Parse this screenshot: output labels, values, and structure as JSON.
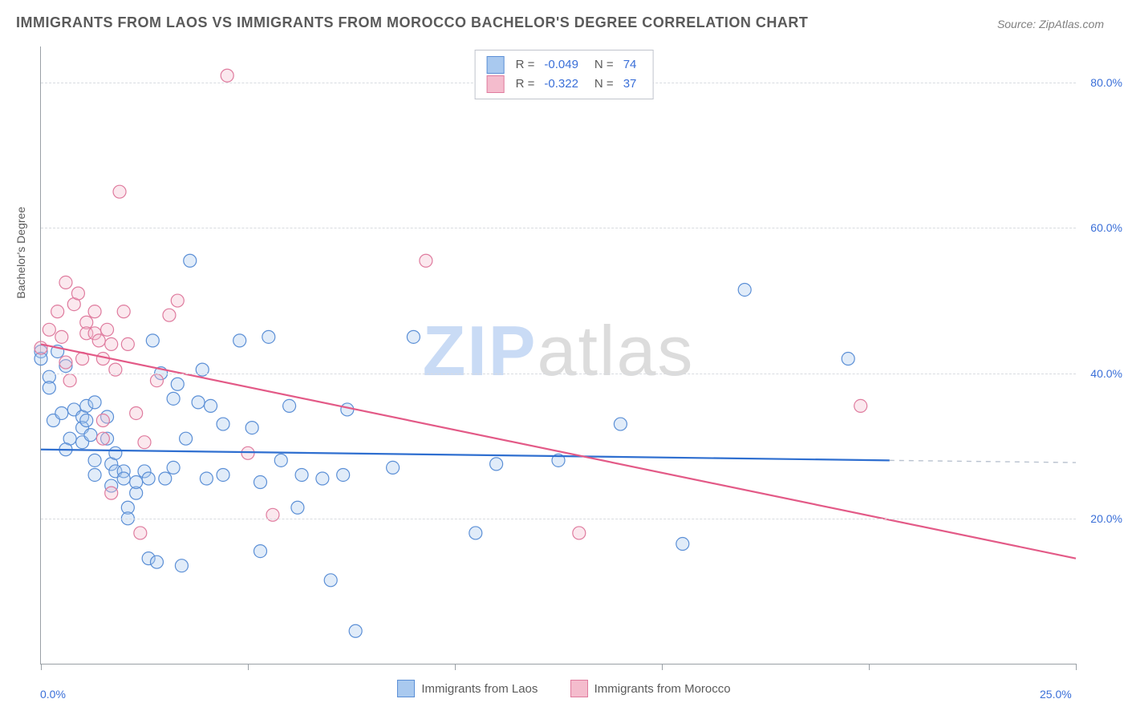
{
  "title": "IMMIGRANTS FROM LAOS VS IMMIGRANTS FROM MOROCCO BACHELOR'S DEGREE CORRELATION CHART",
  "source_label": "Source: ",
  "source_name": "ZipAtlas.com",
  "y_axis_title": "Bachelor's Degree",
  "watermark": {
    "part1": "ZIP",
    "part2": "atlas"
  },
  "chart": {
    "type": "scatter",
    "xlim": [
      0,
      25
    ],
    "ylim": [
      0,
      85
    ],
    "x_ticks_percent": [
      0,
      5,
      10,
      15,
      20,
      25
    ],
    "x_tick_labels": {
      "first": "0.0%",
      "last": "25.0%"
    },
    "y_gridlines": [
      20,
      40,
      60,
      80
    ],
    "y_tick_labels": [
      "20.0%",
      "40.0%",
      "60.0%",
      "80.0%"
    ],
    "background_color": "#ffffff",
    "grid_color": "#d8dbe0",
    "axis_color": "#9aa0a6",
    "label_color": "#3a6fd8",
    "text_color": "#5a5a5a",
    "title_fontsize": 18,
    "label_fontsize": 14,
    "marker_radius": 8,
    "marker_fill_opacity": 0.35,
    "marker_stroke_width": 1.2,
    "trend_line_width": 2.2,
    "series": [
      {
        "name": "Immigrants from Laos",
        "fill_color": "#a9c9ef",
        "stroke_color": "#5b8fd6",
        "line_color": "#2f6fd0",
        "R": "-0.049",
        "N": "74",
        "trend": {
          "x1": 0,
          "y1": 29.5,
          "x2": 20.5,
          "y2": 28.0,
          "extend_x2": 25,
          "extend_y2": 27.7,
          "extend_dash": "6,6"
        },
        "points": [
          [
            0.0,
            43.0
          ],
          [
            0.0,
            42.0
          ],
          [
            0.2,
            39.5
          ],
          [
            0.2,
            38.0
          ],
          [
            0.4,
            43.0
          ],
          [
            0.6,
            41.0
          ],
          [
            0.3,
            33.5
          ],
          [
            0.5,
            34.5
          ],
          [
            0.7,
            31.0
          ],
          [
            0.6,
            29.5
          ],
          [
            0.8,
            35.0
          ],
          [
            1.0,
            34.0
          ],
          [
            1.0,
            30.5
          ],
          [
            1.0,
            32.5
          ],
          [
            1.1,
            35.5
          ],
          [
            1.1,
            33.5
          ],
          [
            1.2,
            31.5
          ],
          [
            1.3,
            36.0
          ],
          [
            1.3,
            28.0
          ],
          [
            1.3,
            26.0
          ],
          [
            1.6,
            31.0
          ],
          [
            1.6,
            34.0
          ],
          [
            1.7,
            27.5
          ],
          [
            1.7,
            24.5
          ],
          [
            1.8,
            29.0
          ],
          [
            1.8,
            26.5
          ],
          [
            2.0,
            26.5
          ],
          [
            2.0,
            25.5
          ],
          [
            2.1,
            21.5
          ],
          [
            2.1,
            20.0
          ],
          [
            2.3,
            23.5
          ],
          [
            2.3,
            25.0
          ],
          [
            2.5,
            26.5
          ],
          [
            2.6,
            25.5
          ],
          [
            2.6,
            14.5
          ],
          [
            2.8,
            14.0
          ],
          [
            2.7,
            44.5
          ],
          [
            2.9,
            40.0
          ],
          [
            3.0,
            25.5
          ],
          [
            3.2,
            27.0
          ],
          [
            3.2,
            36.5
          ],
          [
            3.3,
            38.5
          ],
          [
            3.4,
            13.5
          ],
          [
            3.5,
            31.0
          ],
          [
            3.6,
            55.5
          ],
          [
            3.8,
            36.0
          ],
          [
            3.9,
            40.5
          ],
          [
            4.0,
            25.5
          ],
          [
            4.1,
            35.5
          ],
          [
            4.4,
            33.0
          ],
          [
            4.4,
            26.0
          ],
          [
            4.8,
            44.5
          ],
          [
            5.1,
            32.5
          ],
          [
            5.3,
            25.0
          ],
          [
            5.3,
            15.5
          ],
          [
            5.5,
            45.0
          ],
          [
            5.8,
            28.0
          ],
          [
            6.0,
            35.5
          ],
          [
            6.2,
            21.5
          ],
          [
            6.3,
            26.0
          ],
          [
            6.8,
            25.5
          ],
          [
            7.0,
            11.5
          ],
          [
            7.3,
            26.0
          ],
          [
            7.4,
            35.0
          ],
          [
            7.6,
            4.5
          ],
          [
            8.5,
            27.0
          ],
          [
            9.0,
            45.0
          ],
          [
            10.5,
            18.0
          ],
          [
            11.0,
            27.5
          ],
          [
            12.5,
            28.0
          ],
          [
            14.0,
            33.0
          ],
          [
            15.5,
            16.5
          ],
          [
            17.0,
            51.5
          ],
          [
            19.5,
            42.0
          ]
        ]
      },
      {
        "name": "Immigrants from Morocco",
        "fill_color": "#f4bccd",
        "stroke_color": "#df7b9e",
        "line_color": "#e35a87",
        "R": "-0.322",
        "N": "37",
        "trend": {
          "x1": 0,
          "y1": 44.0,
          "x2": 25,
          "y2": 14.5
        },
        "points": [
          [
            0.0,
            43.5
          ],
          [
            0.2,
            46.0
          ],
          [
            0.4,
            48.5
          ],
          [
            0.5,
            45.0
          ],
          [
            0.6,
            52.5
          ],
          [
            0.8,
            49.5
          ],
          [
            0.6,
            41.5
          ],
          [
            0.7,
            39.0
          ],
          [
            0.9,
            51.0
          ],
          [
            1.0,
            42.0
          ],
          [
            1.1,
            47.0
          ],
          [
            1.1,
            45.5
          ],
          [
            1.3,
            48.5
          ],
          [
            1.3,
            45.5
          ],
          [
            1.4,
            44.5
          ],
          [
            1.5,
            42.0
          ],
          [
            1.6,
            46.0
          ],
          [
            1.7,
            44.0
          ],
          [
            1.8,
            40.5
          ],
          [
            1.5,
            33.5
          ],
          [
            1.5,
            31.0
          ],
          [
            1.7,
            23.5
          ],
          [
            1.9,
            65.0
          ],
          [
            2.0,
            48.5
          ],
          [
            2.1,
            44.0
          ],
          [
            2.3,
            34.5
          ],
          [
            2.4,
            18.0
          ],
          [
            2.5,
            30.5
          ],
          [
            2.8,
            39.0
          ],
          [
            3.1,
            48.0
          ],
          [
            3.3,
            50.0
          ],
          [
            4.5,
            81.0
          ],
          [
            5.0,
            29.0
          ],
          [
            5.6,
            20.5
          ],
          [
            9.3,
            55.5
          ],
          [
            13.0,
            18.0
          ],
          [
            19.8,
            35.5
          ]
        ]
      }
    ]
  },
  "legend_bottom": [
    {
      "label": "Immigrants from Laos",
      "fill": "#a9c9ef",
      "stroke": "#5b8fd6"
    },
    {
      "label": "Immigrants from Morocco",
      "fill": "#f4bccd",
      "stroke": "#df7b9e"
    }
  ],
  "legend_top": {
    "R_label": "R =",
    "N_label": "N ="
  }
}
